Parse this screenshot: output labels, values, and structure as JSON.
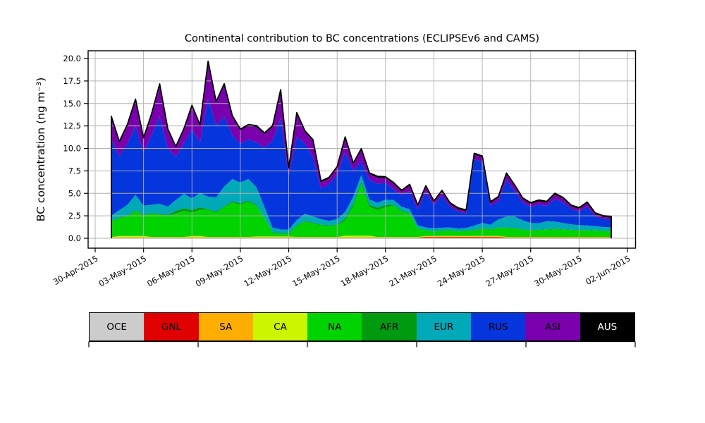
{
  "chart_data": {
    "type": "area",
    "stacked": true,
    "title": "Continental contribution to BC concentrations (ECLIPSEv6 and CAMS)",
    "xlabel": "",
    "ylabel": "BC concentration (ng m⁻³)",
    "x_unit": "days since 30-Apr-2015",
    "grid": true,
    "grid_color": "#b0b0b0",
    "outline_color": "#000000",
    "legend_position": "bottom",
    "ylim": [
      -1.1,
      20.86
    ],
    "xlim_days": [
      -0.44,
      33.5
    ],
    "y_ticks": [
      {
        "label": "0.0",
        "value": 0
      },
      {
        "label": "2.5",
        "value": 2.5
      },
      {
        "label": "5.0",
        "value": 5
      },
      {
        "label": "7.5",
        "value": 7.5
      },
      {
        "label": "10.0",
        "value": 10
      },
      {
        "label": "12.5",
        "value": 12.5
      },
      {
        "label": "15.0",
        "value": 15
      },
      {
        "label": "17.5",
        "value": 17.5
      },
      {
        "label": "20.0",
        "value": 20
      }
    ],
    "x_ticks": [
      {
        "label": "30-Apr-2015",
        "day": 0
      },
      {
        "label": "03-May-2015",
        "day": 3
      },
      {
        "label": "06-May-2015",
        "day": 6
      },
      {
        "label": "09-May-2015",
        "day": 9
      },
      {
        "label": "12-May-2015",
        "day": 12
      },
      {
        "label": "15-May-2015",
        "day": 15
      },
      {
        "label": "18-May-2015",
        "day": 18
      },
      {
        "label": "21-May-2015",
        "day": 21
      },
      {
        "label": "24-May-2015",
        "day": 24
      },
      {
        "label": "27-May-2015",
        "day": 27
      },
      {
        "label": "30-May-2015",
        "day": 30
      },
      {
        "label": "02-Jun-2015",
        "day": 33
      }
    ],
    "x": [
      1,
      1.5,
      2,
      2.5,
      3,
      3.5,
      4,
      4.5,
      5,
      5.5,
      6,
      6.5,
      7,
      7.5,
      8,
      8.5,
      9,
      9.5,
      10,
      10.5,
      11,
      11.5,
      12,
      12.5,
      13,
      13.5,
      14,
      14.5,
      15,
      15.5,
      16,
      16.5,
      17,
      17.5,
      18,
      18.5,
      19,
      19.5,
      20,
      20.5,
      21,
      21.5,
      22,
      22.5,
      23,
      23.5,
      24,
      24.5,
      25,
      25.5,
      26,
      26.5,
      27,
      27.5,
      28,
      28.5,
      29,
      29.5,
      30,
      30.5,
      31,
      31.5,
      32
    ],
    "series": [
      {
        "name": "OCE",
        "color": "#cccccc",
        "values": [
          0.04,
          0.04,
          0.04,
          0.04,
          0.04,
          0.04,
          0.04,
          0.04,
          0.04,
          0.04,
          0.04,
          0.04,
          0.04,
          0.04,
          0.04,
          0.04,
          0.04,
          0.04,
          0.04,
          0.04,
          0.04,
          0.04,
          0.04,
          0.04,
          0.04,
          0.04,
          0.04,
          0.04,
          0.04,
          0.04,
          0.04,
          0.04,
          0.04,
          0.04,
          0.04,
          0.04,
          0.04,
          0.04,
          0.04,
          0.04,
          0.04,
          0.04,
          0.04,
          0.04,
          0.04,
          0.04,
          0.04,
          0.04,
          0.04,
          0.04,
          0.04,
          0.04,
          0.04,
          0.04,
          0.04,
          0.04,
          0.04,
          0.04,
          0.04,
          0.04,
          0.04,
          0.04,
          0.04
        ]
      },
      {
        "name": "GNL",
        "color": "#e00000",
        "values": [
          0.03,
          0.03,
          0.03,
          0.03,
          0.03,
          0.03,
          0.03,
          0.03,
          0.03,
          0.03,
          0.03,
          0.03,
          0.03,
          0.03,
          0.03,
          0.03,
          0.03,
          0.03,
          0.03,
          0.03,
          0.03,
          0.03,
          0.03,
          0.03,
          0.03,
          0.03,
          0.03,
          0.03,
          0.03,
          0.03,
          0.03,
          0.03,
          0.03,
          0.03,
          0.03,
          0.03,
          0.03,
          0.03,
          0.03,
          0.1,
          0.1,
          0.1,
          0.1,
          0.1,
          0.1,
          0.1,
          0.1,
          0.1,
          0.1,
          0.04,
          0.04,
          0.04,
          0.04,
          0.04,
          0.04,
          0.04,
          0.04,
          0.04,
          0.04,
          0.04,
          0.04,
          0.04,
          0.04
        ]
      },
      {
        "name": "SA",
        "color": "#ffae00",
        "values": [
          0.03,
          0.03,
          0.03,
          0.03,
          0.03,
          0.03,
          0.03,
          0.03,
          0.03,
          0.03,
          0.03,
          0.03,
          0.03,
          0.03,
          0.03,
          0.03,
          0.03,
          0.03,
          0.03,
          0.03,
          0.03,
          0.03,
          0.03,
          0.03,
          0.03,
          0.03,
          0.03,
          0.03,
          0.03,
          0.03,
          0.03,
          0.03,
          0.03,
          0.03,
          0.03,
          0.03,
          0.03,
          0.03,
          0.03,
          0.07,
          0.07,
          0.07,
          0.07,
          0.07,
          0.07,
          0.07,
          0.07,
          0.07,
          0.07,
          0.03,
          0.03,
          0.03,
          0.03,
          0.03,
          0.03,
          0.03,
          0.03,
          0.03,
          0.03,
          0.03,
          0.03,
          0.03,
          0.03
        ]
      },
      {
        "name": "CA",
        "color": "#ccf500",
        "values": [
          0.05,
          0.15,
          0.15,
          0.15,
          0.15,
          0.05,
          0.05,
          0.05,
          0.05,
          0.05,
          0.15,
          0.15,
          0.05,
          0.05,
          0.05,
          0.05,
          0.05,
          0.05,
          0.1,
          0.1,
          0.1,
          0.1,
          0.1,
          0.05,
          0.05,
          0.05,
          0.05,
          0.05,
          0.05,
          0.18,
          0.18,
          0.18,
          0.18,
          0.05,
          0.05,
          0.05,
          0.05,
          0.05,
          0.05,
          0.05,
          0.05,
          0.05,
          0.05,
          0.05,
          0.05,
          0.05,
          0.05,
          0.05,
          0.05,
          0.05,
          0.05,
          0.05,
          0.05,
          0.05,
          0.05,
          0.05,
          0.05,
          0.05,
          0.05,
          0.05,
          0.05,
          0.05,
          0.05
        ]
      },
      {
        "name": "NA",
        "color": "#00d400",
        "values": [
          1.7,
          2.0,
          2.2,
          2.8,
          2.3,
          2.6,
          2.5,
          2.4,
          2.6,
          2.9,
          2.6,
          2.9,
          3.0,
          2.7,
          3.3,
          3.8,
          3.6,
          3.9,
          3.4,
          2.0,
          0.4,
          0.3,
          0.3,
          1.2,
          1.7,
          1.5,
          1.3,
          1.2,
          1.3,
          1.7,
          3.3,
          5.8,
          3.2,
          3.0,
          3.3,
          3.5,
          2.8,
          2.6,
          0.9,
          0.6,
          0.5,
          0.55,
          0.6,
          0.5,
          0.55,
          0.6,
          0.8,
          0.7,
          0.9,
          1.0,
          0.9,
          0.8,
          0.7,
          0.75,
          0.8,
          0.85,
          0.8,
          0.75,
          0.7,
          0.72,
          0.68,
          0.65,
          0.6
        ]
      },
      {
        "name": "AFR",
        "color": "#009a10",
        "values": [
          0.08,
          0.08,
          0.08,
          0.08,
          0.08,
          0.08,
          0.08,
          0.08,
          0.3,
          0.3,
          0.3,
          0.3,
          0.1,
          0.1,
          0.1,
          0.15,
          0.15,
          0.15,
          0.08,
          0.08,
          0.08,
          0.08,
          0.08,
          0.08,
          0.08,
          0.08,
          0.08,
          0.08,
          0.08,
          0.25,
          0.25,
          0.25,
          0.25,
          0.25,
          0.25,
          0.1,
          0.1,
          0.1,
          0.05,
          0.05,
          0.05,
          0.05,
          0.05,
          0.05,
          0.05,
          0.05,
          0.05,
          0.05,
          0.05,
          0.05,
          0.05,
          0.05,
          0.05,
          0.05,
          0.05,
          0.05,
          0.05,
          0.05,
          0.05,
          0.05,
          0.05,
          0.05,
          0.05
        ]
      },
      {
        "name": "EUR",
        "color": "#00a9b8",
        "values": [
          0.6,
          0.8,
          1.2,
          1.7,
          1.0,
          0.9,
          1.1,
          0.9,
          1.2,
          1.6,
          1.3,
          1.6,
          1.4,
          1.6,
          2.2,
          2.5,
          2.3,
          2.4,
          2.0,
          1.2,
          0.5,
          0.4,
          0.4,
          0.6,
          0.8,
          0.7,
          0.6,
          0.5,
          0.6,
          0.7,
          0.8,
          0.7,
          0.6,
          0.55,
          0.6,
          0.5,
          0.45,
          0.4,
          0.35,
          0.3,
          0.3,
          0.32,
          0.3,
          0.28,
          0.3,
          0.5,
          0.6,
          0.5,
          0.9,
          1.2,
          1.3,
          1.0,
          0.8,
          0.7,
          0.9,
          0.8,
          0.7,
          0.6,
          0.55,
          0.5,
          0.45,
          0.4,
          0.4
        ]
      },
      {
        "name": "RUS",
        "color": "#0535dd",
        "values": [
          8.5,
          6.0,
          6.8,
          7.7,
          5.9,
          7.8,
          9.7,
          6.5,
          4.8,
          5.6,
          7.7,
          5.6,
          10.9,
          8.0,
          7.8,
          4.9,
          4.3,
          4.4,
          5.0,
          6.6,
          9.7,
          12.4,
          5.9,
          9.3,
          7.8,
          6.6,
          3.4,
          4.1,
          4.9,
          6.7,
          2.9,
          1.5,
          2.2,
          2.1,
          1.9,
          1.2,
          1.3,
          2.0,
          1.8,
          4.0,
          2.6,
          3.6,
          2.3,
          1.9,
          1.6,
          7.4,
          6.8,
          2.1,
          2.0,
          4.1,
          2.9,
          2.0,
          1.8,
          2.1,
          1.7,
          2.5,
          2.3,
          1.7,
          1.5,
          2.1,
          1.1,
          0.9,
          0.9
        ]
      },
      {
        "name": "ASI",
        "color": "#7a00ad",
        "values": [
          2.4,
          1.5,
          2.0,
          2.8,
          1.5,
          2.2,
          3.5,
          2.0,
          1.0,
          1.5,
          2.5,
          1.8,
          4.0,
          2.5,
          3.5,
          2.0,
          1.5,
          1.5,
          1.7,
          1.5,
          1.5,
          3.0,
          0.8,
          2.5,
          1.3,
          1.8,
          0.7,
          0.6,
          0.8,
          1.5,
          0.7,
          1.3,
          0.6,
          0.7,
          0.5,
          0.6,
          0.4,
          0.6,
          0.3,
          0.5,
          0.3,
          0.4,
          0.3,
          0.25,
          0.25,
          0.5,
          0.5,
          0.3,
          0.4,
          0.6,
          0.5,
          0.35,
          0.3,
          0.35,
          0.35,
          0.5,
          0.4,
          0.3,
          0.3,
          0.35,
          0.25,
          0.2,
          0.18
        ]
      },
      {
        "name": "AUS",
        "color": "#000000",
        "values": [
          0.15,
          0.15,
          0.15,
          0.15,
          0.15,
          0.15,
          0.15,
          0.15,
          0.15,
          0.15,
          0.15,
          0.15,
          0.15,
          0.15,
          0.15,
          0.15,
          0.15,
          0.15,
          0.15,
          0.15,
          0.15,
          0.15,
          0.15,
          0.15,
          0.15,
          0.15,
          0.15,
          0.15,
          0.15,
          0.15,
          0.15,
          0.15,
          0.15,
          0.15,
          0.15,
          0.15,
          0.15,
          0.15,
          0.15,
          0.15,
          0.15,
          0.15,
          0.15,
          0.15,
          0.15,
          0.15,
          0.15,
          0.15,
          0.15,
          0.15,
          0.15,
          0.15,
          0.15,
          0.15,
          0.15,
          0.15,
          0.15,
          0.15,
          0.15,
          0.15,
          0.15,
          0.15,
          0.15
        ]
      }
    ]
  },
  "legend": {
    "entries": [
      {
        "label": "OCE",
        "color": "#cccccc",
        "text_color": "#000000"
      },
      {
        "label": "GNL",
        "color": "#e00000",
        "text_color": "#000000"
      },
      {
        "label": "SA",
        "color": "#ffae00",
        "text_color": "#000000"
      },
      {
        "label": "CA",
        "color": "#ccf500",
        "text_color": "#000000"
      },
      {
        "label": "NA",
        "color": "#00d400",
        "text_color": "#000000"
      },
      {
        "label": "AFR",
        "color": "#009a10",
        "text_color": "#000000"
      },
      {
        "label": "EUR",
        "color": "#00a9b8",
        "text_color": "#000000"
      },
      {
        "label": "RUS",
        "color": "#0535dd",
        "text_color": "#000000"
      },
      {
        "label": "ASI",
        "color": "#7a00ad",
        "text_color": "#000000"
      },
      {
        "label": "AUS",
        "color": "#000000",
        "text_color": "#ffffff"
      }
    ]
  }
}
